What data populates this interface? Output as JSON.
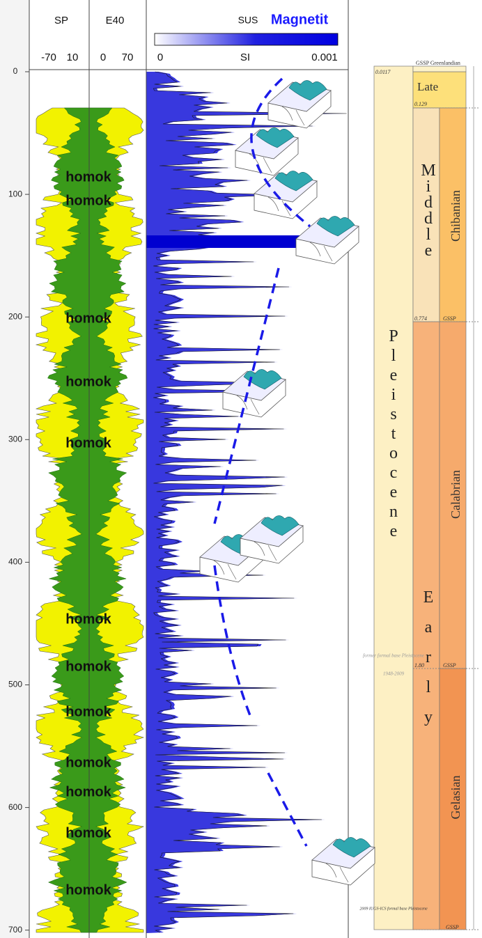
{
  "header": {
    "sp": "SP",
    "e40": "E40",
    "sus": "SUS",
    "mineral": "Magnetit",
    "sp_scale": [
      "-70",
      "10"
    ],
    "e40_scale": [
      "0",
      "70"
    ],
    "sus_scale": [
      "0",
      "SI",
      "0.001"
    ]
  },
  "depth_ticks": [
    0,
    100,
    200,
    300,
    400,
    500,
    600,
    700
  ],
  "sand_labels": [
    "homok",
    "homok",
    "homok",
    "homok",
    "homok",
    "homok",
    "homok",
    "homok",
    "homok",
    "homok",
    "homok",
    "homok"
  ],
  "timescale": {
    "top_age": "0.0117",
    "top_stage": "GSSP Greenlandian",
    "late": "Late",
    "late_base": "0.129",
    "middle": "Middle",
    "chibanian": "Chibanian",
    "middle_base": "0.774",
    "gssp1": "GSSP",
    "epoch": "Pleistocene",
    "calabrian": "Calabrian",
    "early": "Early",
    "calabrian_base": "1.80",
    "gssp2": "GSSP",
    "former_base": "former formal base Pleistocene",
    "former_years": "1948-2009",
    "gelasian": "Gelasian",
    "new_base": "2009 IUGS-ICS formal base Pleistocene",
    "gssp3": "GSSP"
  }
}
